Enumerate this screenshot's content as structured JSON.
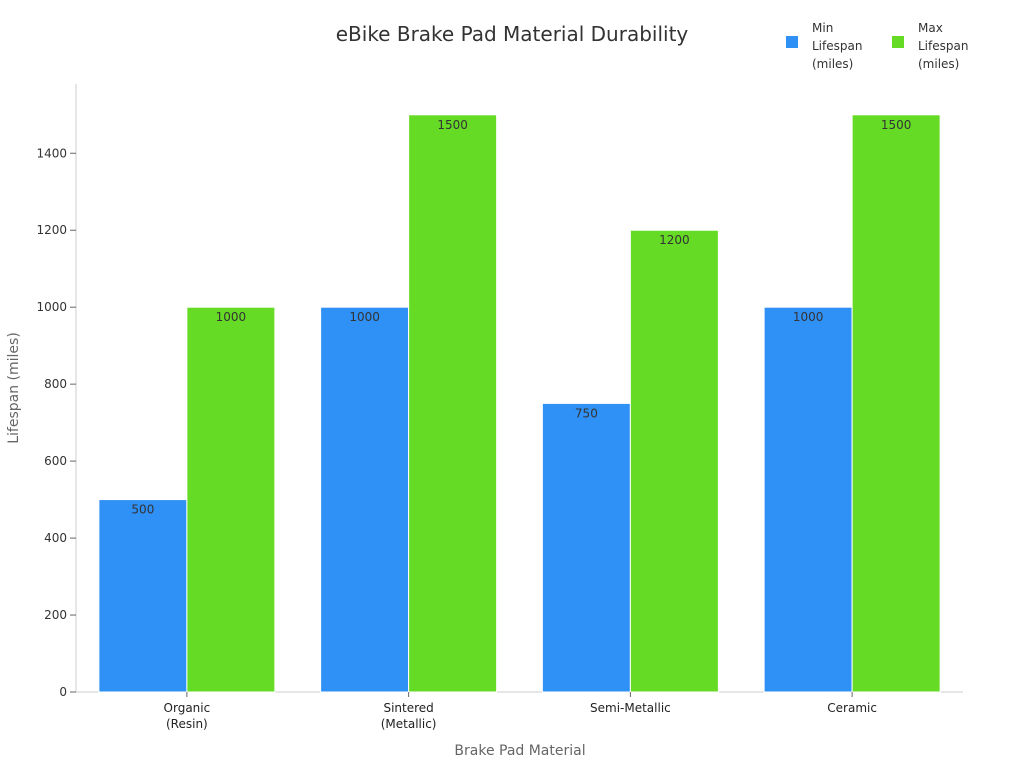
{
  "chart_data": {
    "type": "bar",
    "title": "eBike Brake Pad Material Durability",
    "xlabel": "Brake Pad Material",
    "ylabel": "Lifespan (miles)",
    "categories": [
      "Organic\n(Resin)",
      "Sintered\n(Metallic)",
      "Semi-Metallic",
      "Ceramic"
    ],
    "series": [
      {
        "name": "Min\nLifespan\n(miles)",
        "color": "#2f90f6",
        "values": [
          500,
          1000,
          750,
          1000
        ]
      },
      {
        "name": "Max\nLifespan\n(miles)",
        "color": "#66db26",
        "values": [
          1000,
          1500,
          1200,
          1500
        ]
      }
    ],
    "ylim": [
      0,
      1580
    ],
    "yticks": [
      0,
      200,
      400,
      600,
      800,
      1000,
      1200,
      1400
    ],
    "grid": false,
    "legend_position": "top-right",
    "data_labels": true
  }
}
